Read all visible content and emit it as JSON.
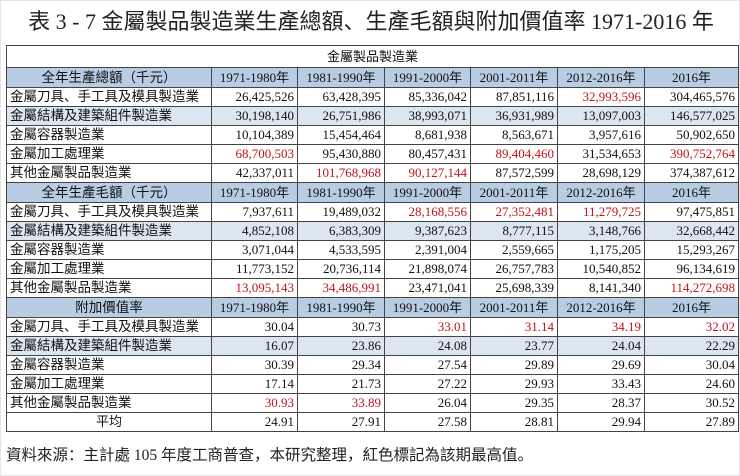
{
  "title": "表 3 - 7 金屬製品製造業生產總額、生產毛額與附加價值率 1971-2016 年",
  "table": {
    "caption": "金屬製品製造業",
    "periods": [
      "1971-1980年",
      "1981-1990年",
      "1991-2000年",
      "2001-2011年",
      "2012-2016年",
      "2016年"
    ],
    "highlight_color": "#c0141e",
    "header_color": "#b8cce4",
    "stripe_color": "#dce6f1",
    "sections": [
      {
        "label": "全年生產總額（千元）",
        "rows": [
          {
            "name": "金屬刀具、手工具及模具製造業",
            "values": [
              "26,425,526",
              "63,428,395",
              "85,336,042",
              "87,851,116",
              "32,993,596",
              "304,465,576"
            ],
            "highlight": [
              false,
              false,
              false,
              false,
              true,
              false
            ]
          },
          {
            "name": "金屬結構及建築組件製造業",
            "values": [
              "30,198,140",
              "26,751,986",
              "38,993,071",
              "36,931,989",
              "13,097,003",
              "146,577,025"
            ],
            "highlight": [
              false,
              false,
              false,
              false,
              false,
              false
            ]
          },
          {
            "name": "金屬容器製造業",
            "values": [
              "10,104,389",
              "15,454,464",
              "8,681,938",
              "8,563,671",
              "3,957,616",
              "50,902,650"
            ],
            "highlight": [
              false,
              false,
              false,
              false,
              false,
              false
            ]
          },
          {
            "name": "金屬加工處理業",
            "values": [
              "68,700,503",
              "95,430,880",
              "80,457,431",
              "89,404,460",
              "31,534,653",
              "390,752,764"
            ],
            "highlight": [
              true,
              false,
              false,
              true,
              false,
              true
            ]
          },
          {
            "name": "其他金屬製品製造業",
            "values": [
              "42,337,011",
              "101,768,968",
              "90,127,144",
              "87,572,599",
              "28,698,129",
              "374,387,612"
            ],
            "highlight": [
              false,
              true,
              true,
              false,
              false,
              false
            ]
          }
        ]
      },
      {
        "label": "全年生產毛額（千元）",
        "rows": [
          {
            "name": "金屬刀具、手工具及模具製造業",
            "values": [
              "7,937,611",
              "19,489,032",
              "28,168,556",
              "27,352,481",
              "11,279,725",
              "97,475,851"
            ],
            "highlight": [
              false,
              false,
              true,
              true,
              true,
              false
            ]
          },
          {
            "name": "金屬結構及建築組件製造業",
            "values": [
              "4,852,108",
              "6,383,309",
              "9,387,623",
              "8,777,115",
              "3,148,766",
              "32,668,442"
            ],
            "highlight": [
              false,
              false,
              false,
              false,
              false,
              false
            ]
          },
          {
            "name": "金屬容器製造業",
            "values": [
              "3,071,044",
              "4,533,595",
              "2,391,004",
              "2,559,665",
              "1,175,205",
              "15,293,267"
            ],
            "highlight": [
              false,
              false,
              false,
              false,
              false,
              false
            ]
          },
          {
            "name": "金屬加工處理業",
            "values": [
              "11,773,152",
              "20,736,114",
              "21,898,074",
              "26,757,783",
              "10,540,852",
              "96,134,619"
            ],
            "highlight": [
              false,
              false,
              false,
              false,
              false,
              false
            ]
          },
          {
            "name": "其他金屬製品製造業",
            "values": [
              "13,095,143",
              "34,486,991",
              "23,471,041",
              "25,698,339",
              "8,141,340",
              "114,272,698"
            ],
            "highlight": [
              true,
              true,
              false,
              false,
              false,
              true
            ]
          }
        ]
      },
      {
        "label": "附加價值率",
        "rows": [
          {
            "name": "金屬刀具、手工具及模具製造業",
            "values": [
              "30.04",
              "30.73",
              "33.01",
              "31.14",
              "34.19",
              "32.02"
            ],
            "highlight": [
              false,
              false,
              true,
              true,
              true,
              true
            ]
          },
          {
            "name": "金屬結構及建築組件製造業",
            "values": [
              "16.07",
              "23.86",
              "24.08",
              "23.77",
              "24.04",
              "22.29"
            ],
            "highlight": [
              false,
              false,
              false,
              false,
              false,
              false
            ]
          },
          {
            "name": "金屬容器製造業",
            "values": [
              "30.39",
              "29.34",
              "27.54",
              "29.89",
              "29.69",
              "30.04"
            ],
            "highlight": [
              false,
              false,
              false,
              false,
              false,
              false
            ]
          },
          {
            "name": "金屬加工處理業",
            "values": [
              "17.14",
              "21.73",
              "27.22",
              "29.93",
              "33.43",
              "24.60"
            ],
            "highlight": [
              false,
              false,
              false,
              false,
              false,
              false
            ]
          },
          {
            "name": "其他金屬製品製造業",
            "values": [
              "30.93",
              "33.89",
              "26.04",
              "29.35",
              "28.37",
              "30.52"
            ],
            "highlight": [
              true,
              true,
              false,
              false,
              false,
              false
            ]
          }
        ],
        "average": {
          "name": "平均",
          "values": [
            "24.91",
            "27.91",
            "27.58",
            "28.81",
            "29.94",
            "27.89"
          ]
        }
      }
    ]
  },
  "footer": "資料來源：主計處 105 年度工商普查，本研究整理，紅色標記為該期最高值。"
}
